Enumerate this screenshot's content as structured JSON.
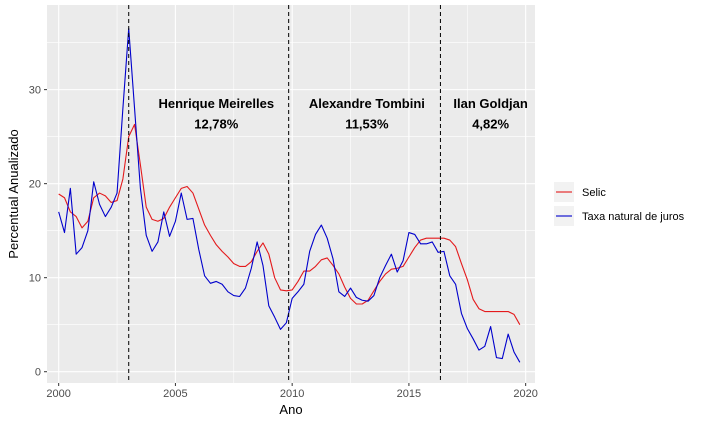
{
  "chart_data": {
    "type": "line",
    "xlabel": "Ano",
    "ylabel": "Percentual Anualizado",
    "xlim": [
      1999.5,
      2020.4
    ],
    "ylim": [
      -1.2,
      39
    ],
    "x_ticks": [
      2000,
      2005,
      2010,
      2015,
      2020
    ],
    "y_ticks": [
      0,
      10,
      20,
      30
    ],
    "grid": true,
    "legend_position": "right",
    "vlines": [
      2003.0,
      2009.85,
      2016.35
    ],
    "annotations": [
      {
        "x": 2006.75,
        "y": 28.6,
        "text": "Henrique Meirelles"
      },
      {
        "x": 2006.75,
        "y": 26.4,
        "text": "12,78%"
      },
      {
        "x": 2013.2,
        "y": 28.6,
        "text": "Alexandre Tombini"
      },
      {
        "x": 2013.2,
        "y": 26.4,
        "text": "11,53%"
      },
      {
        "x": 2018.5,
        "y": 28.6,
        "text": "Ilan Goldjan"
      },
      {
        "x": 2018.5,
        "y": 26.4,
        "text": "4,82%"
      }
    ],
    "series": [
      {
        "name": "Selic",
        "color": "#e41a1c",
        "x": [
          2000.0,
          2000.25,
          2000.5,
          2000.75,
          2001.0,
          2001.25,
          2001.5,
          2001.75,
          2002.0,
          2002.25,
          2002.5,
          2002.75,
          2003.0,
          2003.25,
          2003.5,
          2003.75,
          2004.0,
          2004.25,
          2004.5,
          2004.75,
          2005.0,
          2005.25,
          2005.5,
          2005.75,
          2006.0,
          2006.25,
          2006.5,
          2006.75,
          2007.0,
          2007.25,
          2007.5,
          2007.75,
          2008.0,
          2008.25,
          2008.5,
          2008.75,
          2009.0,
          2009.25,
          2009.5,
          2009.75,
          2010.0,
          2010.25,
          2010.5,
          2010.75,
          2011.0,
          2011.25,
          2011.5,
          2011.75,
          2012.0,
          2012.25,
          2012.5,
          2012.75,
          2013.0,
          2013.25,
          2013.5,
          2013.75,
          2014.0,
          2014.25,
          2014.5,
          2014.75,
          2015.0,
          2015.25,
          2015.5,
          2015.75,
          2016.0,
          2016.25,
          2016.5,
          2016.75,
          2017.0,
          2017.25,
          2017.5,
          2017.75,
          2018.0,
          2018.25,
          2018.5,
          2018.75,
          2019.0,
          2019.25,
          2019.5,
          2019.75
        ],
        "values": [
          18.9,
          18.5,
          17.0,
          16.5,
          15.3,
          16.0,
          18.5,
          19.0,
          18.7,
          18.0,
          18.2,
          20.5,
          25.0,
          26.3,
          22.0,
          17.5,
          16.2,
          16.0,
          16.3,
          17.5,
          18.5,
          19.5,
          19.7,
          19.0,
          17.3,
          15.6,
          14.5,
          13.5,
          12.8,
          12.2,
          11.5,
          11.2,
          11.2,
          11.7,
          12.8,
          13.7,
          12.5,
          10.0,
          8.7,
          8.6,
          8.7,
          9.6,
          10.7,
          10.7,
          11.2,
          11.9,
          12.1,
          11.3,
          10.4,
          9.0,
          7.8,
          7.2,
          7.2,
          7.6,
          8.6,
          9.6,
          10.4,
          10.9,
          11.0,
          11.2,
          12.2,
          13.2,
          14.0,
          14.2,
          14.2,
          14.2,
          14.2,
          14.0,
          13.3,
          11.5,
          9.8,
          7.7,
          6.7,
          6.4,
          6.4,
          6.4,
          6.4,
          6.4,
          6.1,
          5.0
        ]
      },
      {
        "name": "Taxa natural de juros",
        "color": "#0000cc",
        "x": [
          2000.0,
          2000.25,
          2000.5,
          2000.75,
          2001.0,
          2001.25,
          2001.5,
          2001.75,
          2002.0,
          2002.25,
          2002.5,
          2002.75,
          2003.0,
          2003.25,
          2003.5,
          2003.75,
          2004.0,
          2004.25,
          2004.5,
          2004.75,
          2005.0,
          2005.25,
          2005.5,
          2005.75,
          2006.0,
          2006.25,
          2006.5,
          2006.75,
          2007.0,
          2007.25,
          2007.5,
          2007.75,
          2008.0,
          2008.25,
          2008.5,
          2008.75,
          2009.0,
          2009.25,
          2009.5,
          2009.75,
          2010.0,
          2010.25,
          2010.5,
          2010.75,
          2011.0,
          2011.25,
          2011.5,
          2011.75,
          2012.0,
          2012.25,
          2012.5,
          2012.75,
          2013.0,
          2013.25,
          2013.5,
          2013.75,
          2014.0,
          2014.25,
          2014.5,
          2014.75,
          2015.0,
          2015.25,
          2015.5,
          2015.75,
          2016.0,
          2016.25,
          2016.5,
          2016.75,
          2017.0,
          2017.25,
          2017.5,
          2017.75,
          2018.0,
          2018.25,
          2018.5,
          2018.75,
          2019.0,
          2019.25,
          2019.5,
          2019.75
        ],
        "values": [
          17.0,
          14.8,
          19.5,
          12.5,
          13.2,
          15.0,
          20.2,
          17.8,
          16.5,
          17.5,
          19.0,
          28.0,
          36.5,
          28.0,
          19.5,
          14.5,
          12.8,
          13.8,
          17.0,
          14.4,
          16.0,
          19.0,
          16.2,
          16.3,
          13.0,
          10.2,
          9.4,
          9.6,
          9.3,
          8.5,
          8.1,
          8.0,
          8.9,
          11.0,
          13.8,
          11.3,
          7.0,
          5.8,
          4.5,
          5.2,
          7.8,
          8.5,
          9.3,
          12.8,
          14.6,
          15.6,
          14.2,
          12.0,
          8.5,
          8.0,
          8.9,
          7.9,
          7.6,
          7.5,
          8.1,
          10.0,
          11.3,
          12.5,
          10.6,
          11.8,
          14.8,
          14.6,
          13.6,
          13.6,
          13.8,
          12.7,
          12.8,
          10.2,
          9.3,
          6.2,
          4.6,
          3.5,
          2.3,
          2.7,
          4.8,
          1.5,
          1.4,
          4.0,
          2.1,
          1.0
        ]
      }
    ]
  }
}
